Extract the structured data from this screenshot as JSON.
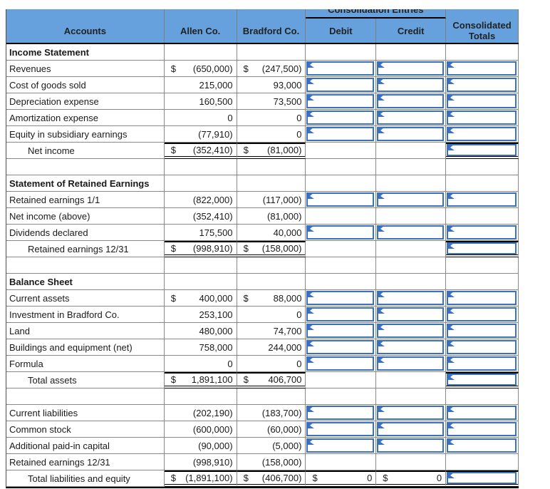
{
  "header": {
    "consolidation_entries_label": "Consolidation Entries",
    "columns": [
      "Accounts",
      "Allen Co.",
      "Bradford Co.",
      "Debit",
      "Credit",
      "Consolidated Totals"
    ]
  },
  "colors": {
    "header_bg": "#66a1de",
    "input_box_border": "#3a70c2",
    "gridline": "#898989",
    "total_rule": "#000000"
  },
  "rows": [
    {
      "label": "Income Statement",
      "type": "section"
    },
    {
      "label": "Revenues",
      "type": "item",
      "allen": {
        "d": "$",
        "v": "(650,000)"
      },
      "bradford": {
        "d": "$",
        "v": "(247,500)"
      },
      "debit": {
        "box": true
      },
      "credit": {
        "box": true
      },
      "total": {
        "box": true
      }
    },
    {
      "label": "Cost of goods sold",
      "type": "item",
      "allen": {
        "v": "215,000"
      },
      "bradford": {
        "v": "93,000"
      },
      "debit": {
        "box": true
      },
      "credit": {
        "box": true
      },
      "total": {
        "box": true
      }
    },
    {
      "label": "Depreciation expense",
      "type": "item",
      "allen": {
        "v": "160,500"
      },
      "bradford": {
        "v": "73,500"
      },
      "debit": {
        "box": true
      },
      "credit": {
        "box": true
      },
      "total": {
        "box": true
      }
    },
    {
      "label": "Amortization expense",
      "type": "item",
      "allen": {
        "v": "0"
      },
      "bradford": {
        "v": "0"
      },
      "debit": {
        "box": true
      },
      "credit": {
        "box": true
      },
      "total": {
        "box": true
      }
    },
    {
      "label": "Equity in subsidiary earnings",
      "type": "item",
      "allen": {
        "v": "(77,910)"
      },
      "bradford": {
        "v": "0"
      },
      "debit": {
        "box": true
      },
      "credit": {
        "box": true
      },
      "total": {
        "box": true
      }
    },
    {
      "label": "Net income",
      "type": "total",
      "indent": true,
      "allen": {
        "d": "$",
        "v": "(352,410)",
        "sum": true
      },
      "bradford": {
        "d": "$",
        "v": "(81,000)",
        "sum": true
      },
      "total": {
        "box": true,
        "sum": true
      }
    },
    {
      "label": "",
      "type": "blank"
    },
    {
      "label": "Statement of Retained Earnings",
      "type": "section"
    },
    {
      "label": "Retained earnings 1/1",
      "type": "item",
      "allen": {
        "v": "(822,000)"
      },
      "bradford": {
        "v": "(117,000)"
      },
      "debit": {
        "box": true
      },
      "credit": {
        "box": true
      },
      "total": {
        "box": true
      }
    },
    {
      "label": "Net income (above)",
      "type": "item",
      "allen": {
        "v": "(352,410)"
      },
      "bradford": {
        "v": "(81,000)"
      }
    },
    {
      "label": "Dividends declared",
      "type": "item",
      "allen": {
        "v": "175,500"
      },
      "bradford": {
        "v": "40,000"
      },
      "debit": {
        "box": true
      },
      "credit": {
        "box": true
      },
      "total": {
        "box": true
      }
    },
    {
      "label": "Retained earnings 12/31",
      "type": "total",
      "indent": true,
      "allen": {
        "d": "$",
        "v": "(998,910)",
        "sum": true
      },
      "bradford": {
        "d": "$",
        "v": "(158,000)",
        "sum": true
      },
      "total": {
        "box": true,
        "sum": true
      }
    },
    {
      "label": "",
      "type": "blank"
    },
    {
      "label": "Balance Sheet",
      "type": "section"
    },
    {
      "label": "Current assets",
      "type": "item",
      "allen": {
        "d": "$",
        "v": "400,000"
      },
      "bradford": {
        "d": "$",
        "v": "88,000"
      },
      "debit": {
        "box": true
      },
      "credit": {
        "box": true
      },
      "total": {
        "box": true
      }
    },
    {
      "label": "Investment in Bradford Co.",
      "type": "item",
      "allen": {
        "v": "253,100"
      },
      "bradford": {
        "v": "0"
      },
      "debit": {
        "box": true
      },
      "credit": {
        "box": true
      },
      "total": {
        "box": true
      }
    },
    {
      "label": "Land",
      "type": "item",
      "allen": {
        "v": "480,000"
      },
      "bradford": {
        "v": "74,700"
      },
      "debit": {
        "box": true
      },
      "credit": {
        "box": true
      },
      "total": {
        "box": true
      }
    },
    {
      "label": "Buildings and equipment (net)",
      "type": "item",
      "allen": {
        "v": "758,000"
      },
      "bradford": {
        "v": "244,000"
      },
      "debit": {
        "box": true
      },
      "credit": {
        "box": true
      },
      "total": {
        "box": true
      }
    },
    {
      "label": "Formula",
      "type": "item",
      "allen": {
        "v": "0"
      },
      "bradford": {
        "v": "0"
      },
      "debit": {
        "box": true
      },
      "credit": {
        "box": true
      },
      "total": {
        "box": true
      }
    },
    {
      "label": "Total assets",
      "type": "total",
      "indent": true,
      "allen": {
        "d": "$",
        "v": "1,891,100",
        "sum": true
      },
      "bradford": {
        "d": "$",
        "v": "406,700",
        "sum": true
      },
      "total": {
        "box": true,
        "sum": true
      }
    },
    {
      "label": "",
      "type": "blank"
    },
    {
      "label": "Current liabilities",
      "type": "item",
      "allen": {
        "v": "(202,190)"
      },
      "bradford": {
        "v": "(183,700)"
      },
      "debit": {
        "box": true
      },
      "credit": {
        "box": true
      },
      "total": {
        "box": true
      }
    },
    {
      "label": "Common stock",
      "type": "item",
      "allen": {
        "v": "(600,000)"
      },
      "bradford": {
        "v": "(60,000)"
      },
      "debit": {
        "box": true
      },
      "credit": {
        "box": true
      },
      "total": {
        "box": true
      }
    },
    {
      "label": "Additional paid-in capital",
      "type": "item",
      "allen": {
        "v": "(90,000)"
      },
      "bradford": {
        "v": "(5,000)"
      },
      "debit": {
        "box": true
      },
      "credit": {
        "box": true
      },
      "total": {
        "box": true
      }
    },
    {
      "label": "Retained earnings 12/31",
      "type": "item",
      "allen": {
        "v": "(998,910)"
      },
      "bradford": {
        "v": "(158,000)"
      }
    },
    {
      "label": "Total liabilities and equity",
      "type": "total",
      "indent": true,
      "allen": {
        "d": "$",
        "v": "(1,891,100)",
        "sum": true
      },
      "bradford": {
        "d": "$",
        "v": "(406,700)",
        "sum": true
      },
      "debit": {
        "d": "$",
        "v": "0",
        "sum": true
      },
      "credit": {
        "d": "$",
        "v": "0",
        "sum": true
      },
      "total": {
        "box": true,
        "sum": true
      }
    }
  ]
}
